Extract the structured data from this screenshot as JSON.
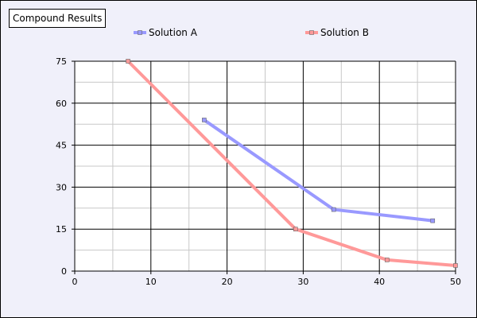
{
  "chart_data": {
    "type": "line",
    "title": "Compound Results",
    "xlabel": "",
    "ylabel": "",
    "xlim": [
      0,
      50
    ],
    "ylim": [
      0,
      75
    ],
    "x_ticks": [
      0,
      10,
      20,
      30,
      40,
      50
    ],
    "y_ticks": [
      0,
      15,
      30,
      45,
      60,
      75
    ],
    "grid": true,
    "legend_position": "top",
    "series": [
      {
        "name": "Solution A",
        "color": "#9999ff",
        "points": [
          {
            "x": 17,
            "y": 54
          },
          {
            "x": 34,
            "y": 22
          },
          {
            "x": 47,
            "y": 18
          }
        ]
      },
      {
        "name": "Solution B",
        "color": "#ff9999",
        "points": [
          {
            "x": 7,
            "y": 75
          },
          {
            "x": 29,
            "y": 15
          },
          {
            "x": 41,
            "y": 4
          },
          {
            "x": 50,
            "y": 2
          }
        ]
      }
    ]
  }
}
